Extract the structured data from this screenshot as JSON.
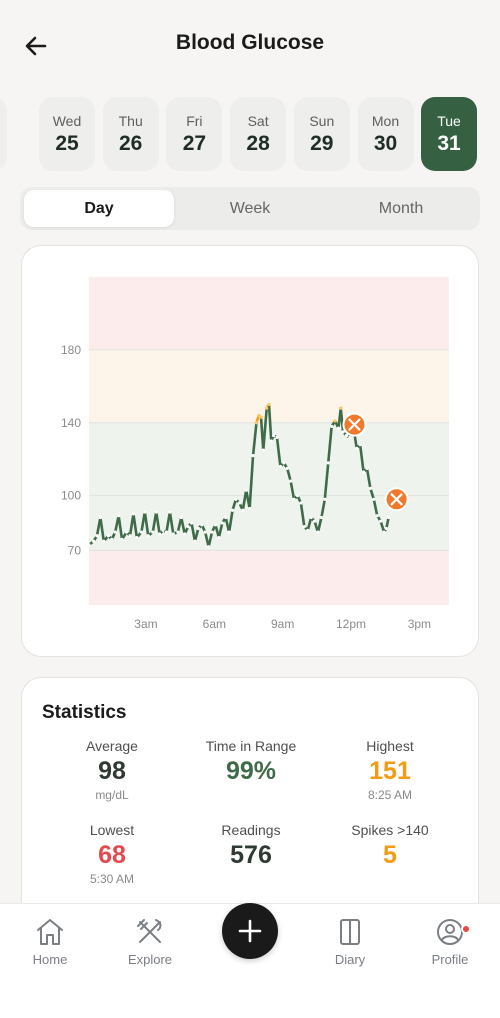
{
  "header": {
    "title": "Blood Glucose",
    "back_icon": "arrow-left-icon"
  },
  "dates": [
    {
      "dow": "Wed",
      "day": "25",
      "active": false
    },
    {
      "dow": "Thu",
      "day": "26",
      "active": false
    },
    {
      "dow": "Fri",
      "day": "27",
      "active": false
    },
    {
      "dow": "Sat",
      "day": "28",
      "active": false
    },
    {
      "dow": "Sun",
      "day": "29",
      "active": false
    },
    {
      "dow": "Mon",
      "day": "30",
      "active": false
    },
    {
      "dow": "Tue",
      "day": "31",
      "active": true
    }
  ],
  "segments": [
    {
      "label": "Day",
      "active": true
    },
    {
      "label": "Week",
      "active": false
    },
    {
      "label": "Month",
      "active": false
    }
  ],
  "chart_data": {
    "type": "line",
    "title": "",
    "xlabel": "",
    "ylabel": "",
    "unit": "mg/dL",
    "x_unit": "hours",
    "xlim": [
      0.5,
      16.3
    ],
    "ylim": [
      40,
      220
    ],
    "yticks": [
      70,
      100,
      140,
      180
    ],
    "xticks": [
      {
        "label": "3am",
        "hour": 3
      },
      {
        "label": "6am",
        "hour": 6
      },
      {
        "label": "9am",
        "hour": 9
      },
      {
        "label": "12pm",
        "hour": 12
      },
      {
        "label": "3pm",
        "hour": 15
      }
    ],
    "zones": [
      {
        "from": 40,
        "to": 70,
        "color": "#fdecec"
      },
      {
        "from": 70,
        "to": 140,
        "color": "#eef3ee"
      },
      {
        "from": 140,
        "to": 180,
        "color": "#fdf5e9"
      },
      {
        "from": 180,
        "to": 220,
        "color": "#fdecec"
      }
    ],
    "series": [
      {
        "color": "#3f6b49",
        "spike_color": "#f4a11a",
        "spike_threshold": 140,
        "points": [
          [
            0.5,
            73
          ],
          [
            0.7,
            75
          ],
          [
            0.85,
            78
          ],
          [
            1.0,
            88
          ],
          [
            1.15,
            75
          ],
          [
            1.35,
            78
          ],
          [
            1.5,
            76
          ],
          [
            1.65,
            80
          ],
          [
            1.8,
            89
          ],
          [
            1.95,
            76
          ],
          [
            2.15,
            80
          ],
          [
            2.3,
            78
          ],
          [
            2.45,
            90
          ],
          [
            2.6,
            77
          ],
          [
            2.8,
            80
          ],
          [
            2.95,
            91
          ],
          [
            3.1,
            78
          ],
          [
            3.3,
            80
          ],
          [
            3.45,
            91
          ],
          [
            3.6,
            79
          ],
          [
            3.75,
            81
          ],
          [
            3.9,
            80
          ],
          [
            4.05,
            91
          ],
          [
            4.2,
            79
          ],
          [
            4.4,
            80
          ],
          [
            4.55,
            88
          ],
          [
            4.7,
            79
          ],
          [
            4.85,
            83
          ],
          [
            5.0,
            85
          ],
          [
            5.15,
            75
          ],
          [
            5.3,
            82
          ],
          [
            5.45,
            84
          ],
          [
            5.6,
            80
          ],
          [
            5.75,
            72
          ],
          [
            5.9,
            80
          ],
          [
            6.05,
            84
          ],
          [
            6.2,
            77
          ],
          [
            6.35,
            85
          ],
          [
            6.5,
            88
          ],
          [
            6.65,
            80
          ],
          [
            6.8,
            92
          ],
          [
            6.95,
            98
          ],
          [
            7.1,
            96
          ],
          [
            7.25,
            92
          ],
          [
            7.4,
            103
          ],
          [
            7.55,
            93
          ],
          [
            7.7,
            122
          ],
          [
            7.85,
            140
          ],
          [
            7.95,
            144
          ],
          [
            8.05,
            143
          ],
          [
            8.15,
            125
          ],
          [
            8.3,
            148
          ],
          [
            8.4,
            150
          ],
          [
            8.5,
            130
          ],
          [
            8.6,
            133
          ],
          [
            8.75,
            132
          ],
          [
            8.9,
            116
          ],
          [
            9.05,
            118
          ],
          [
            9.2,
            115
          ],
          [
            9.35,
            108
          ],
          [
            9.5,
            98
          ],
          [
            9.65,
            100
          ],
          [
            9.8,
            96
          ],
          [
            9.95,
            83
          ],
          [
            10.1,
            81
          ],
          [
            10.25,
            88
          ],
          [
            10.4,
            86
          ],
          [
            10.55,
            80
          ],
          [
            10.7,
            88
          ],
          [
            10.85,
            98
          ],
          [
            11.0,
            118
          ],
          [
            11.15,
            138
          ],
          [
            11.3,
            141
          ],
          [
            11.45,
            137
          ],
          [
            11.55,
            148
          ],
          [
            11.65,
            135
          ],
          [
            11.8,
            133
          ],
          [
            11.95,
            132
          ],
          [
            12.1,
            138
          ],
          [
            12.25,
            126
          ],
          [
            12.4,
            128
          ],
          [
            12.55,
            113
          ],
          [
            12.7,
            115
          ],
          [
            12.85,
            104
          ],
          [
            13.0,
            98
          ],
          [
            13.15,
            89
          ],
          [
            13.3,
            86
          ],
          [
            13.45,
            80
          ],
          [
            13.55,
            82
          ],
          [
            13.65,
            88
          ]
        ]
      }
    ],
    "events": [
      {
        "type": "meal",
        "icon": "fork-knife-icon",
        "hour": 12.15,
        "value": 139
      },
      {
        "type": "meal",
        "icon": "fork-knife-icon",
        "hour": 14.0,
        "value": 98
      }
    ]
  },
  "statistics": {
    "title": "Statistics",
    "items": [
      {
        "label": "Average",
        "value": "98",
        "sub": "mg/dL",
        "color": "#2f3a33"
      },
      {
        "label": "Time in Range",
        "value": "99%",
        "sub": "",
        "color": "#3f6b49"
      },
      {
        "label": "Highest",
        "value": "151",
        "sub": "8:25 AM",
        "color": "#f39c12"
      },
      {
        "label": "Lowest",
        "value": "68",
        "sub": "5:30 AM",
        "color": "#e5484d"
      },
      {
        "label": "Readings",
        "value": "576",
        "sub": "",
        "color": "#2f3a33"
      },
      {
        "label": "Spikes >140",
        "value": "5",
        "sub": "",
        "color": "#f39c12"
      }
    ]
  },
  "tabbar": {
    "items": [
      {
        "label": "Home",
        "icon": "home-icon"
      },
      {
        "label": "Explore",
        "icon": "fork-knife-icon"
      },
      {
        "label": "Diary",
        "icon": "book-icon"
      },
      {
        "label": "Profile",
        "icon": "profile-icon",
        "notification": true
      }
    ],
    "fab_icon": "plus-icon"
  }
}
